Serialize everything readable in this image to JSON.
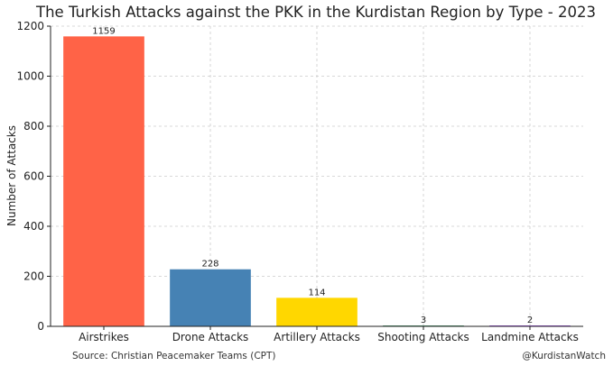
{
  "chart_data": {
    "type": "bar",
    "title": "The Turkish Attacks against the PKK in the Kurdistan Region by Type - 2023",
    "xlabel": "",
    "ylabel": "Number of Attacks",
    "categories": [
      "Airstrikes",
      "Drone Attacks",
      "Artillery Attacks",
      "Shooting Attacks",
      "Landmine Attacks"
    ],
    "values": [
      1159,
      228,
      114,
      3,
      2
    ],
    "colors": [
      "#ff6347",
      "#4682b4",
      "#ffd700",
      "#2e8b57",
      "#8a2be2"
    ],
    "ylim": [
      0,
      1200
    ],
    "yticks": [
      0,
      200,
      400,
      600,
      800,
      1000,
      1200
    ],
    "grid": true,
    "legend": "none"
  },
  "footer": {
    "source": "Source: Christian Peacemaker Teams (CPT)",
    "credit": "@KurdistanWatch"
  }
}
